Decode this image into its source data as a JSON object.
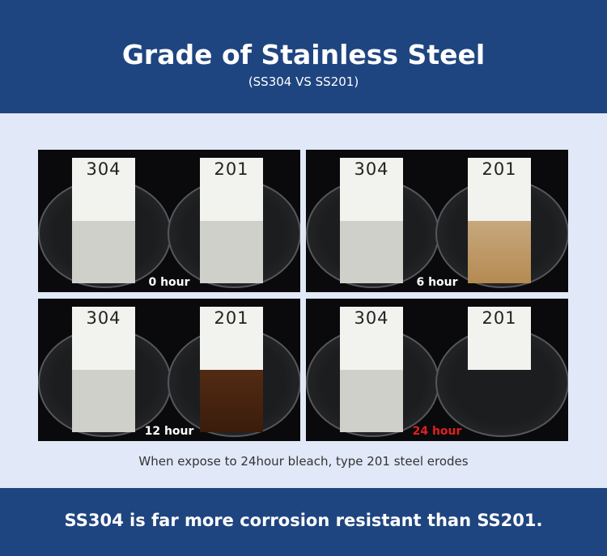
{
  "header": {
    "title": "Grade of Stainless Steel",
    "subtitle": "(SS304 VS SS201)"
  },
  "panels": [
    {
      "left_label": "304",
      "right_label": "201",
      "time": "0 hour",
      "time_color": "#ffffff",
      "corrosion": "none"
    },
    {
      "left_label": "304",
      "right_label": "201",
      "time": "6 hour",
      "time_color": "#ffffff",
      "corrosion": "light"
    },
    {
      "left_label": "304",
      "right_label": "201",
      "time": "12 hour",
      "time_color": "#ffffff",
      "corrosion": "heavy"
    },
    {
      "left_label": "304",
      "right_label": "201",
      "time": "24 hour",
      "time_color": "#e0201e",
      "corrosion": "eroded"
    }
  ],
  "caption": "When expose to 24hour bleach, type 201 steel erodes",
  "footer": "SS304 is far more corrosion resistant than SS201."
}
